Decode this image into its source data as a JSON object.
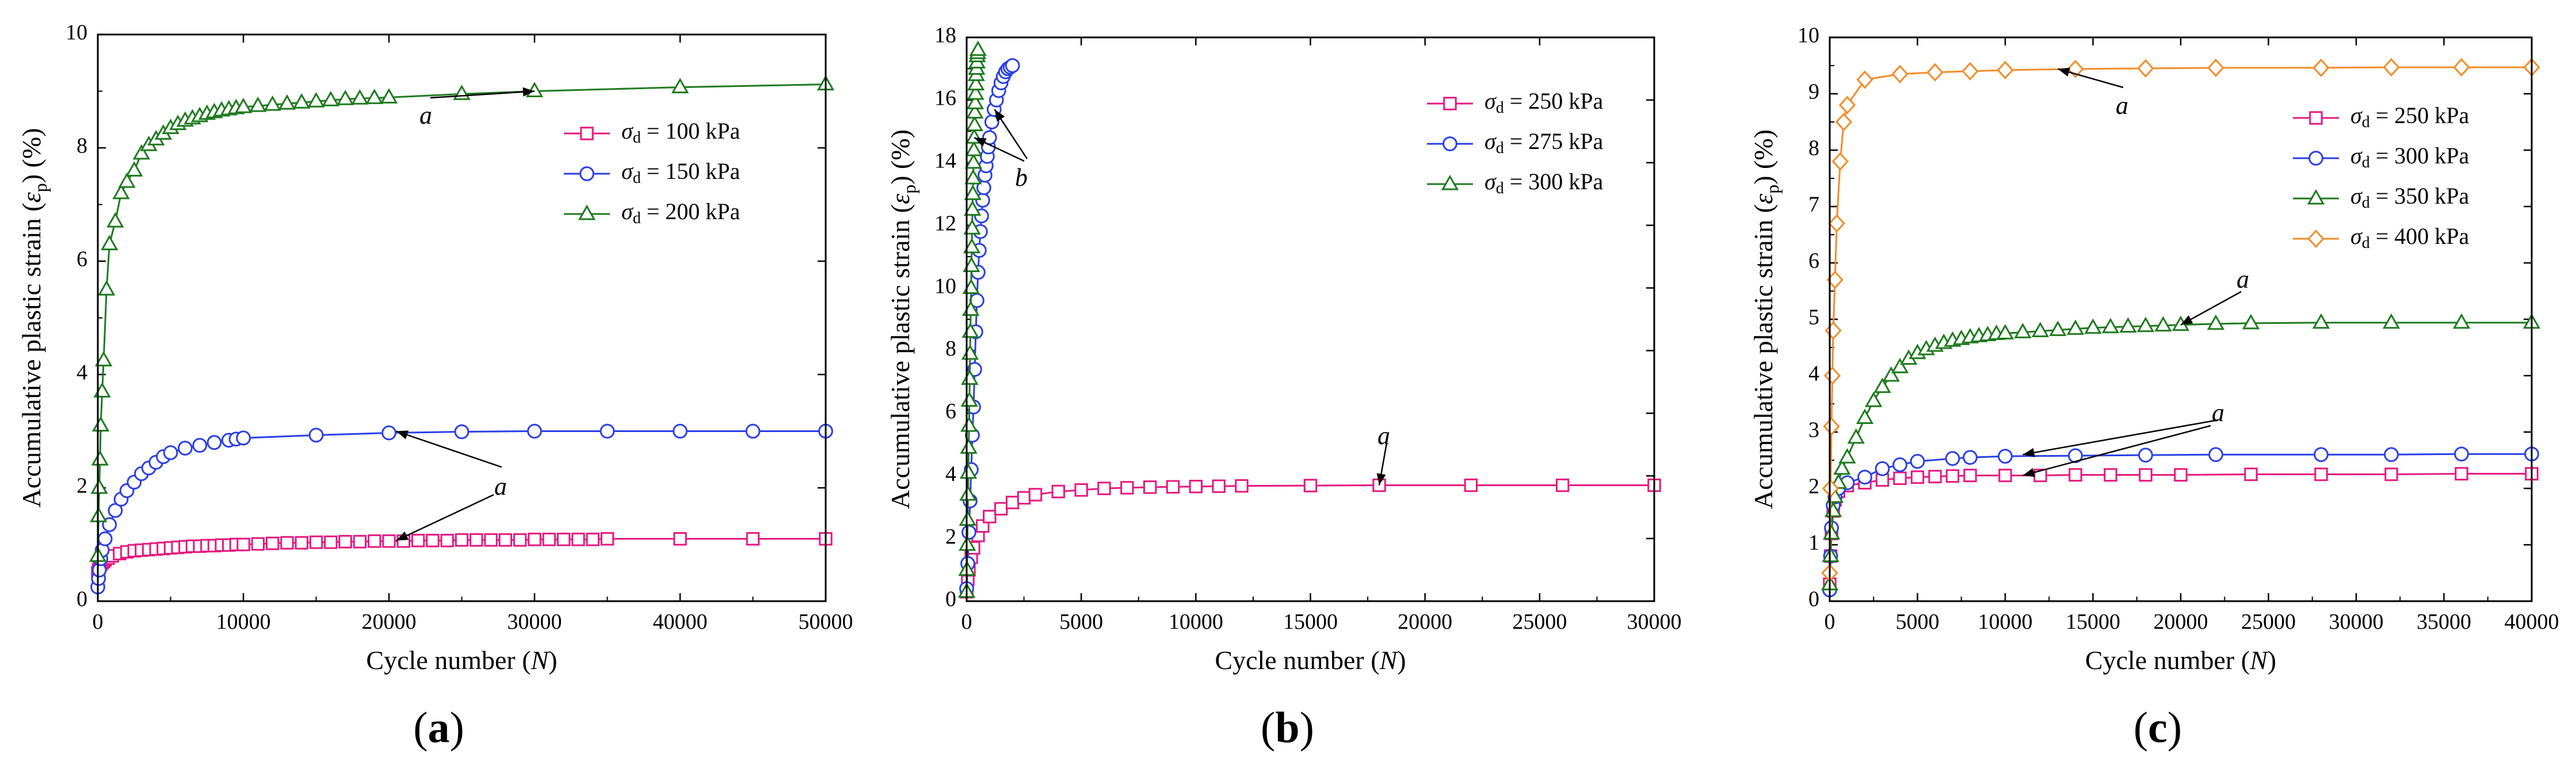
{
  "chart_data": [
    {
      "type": "line",
      "panel_label": "a",
      "xlabel": "Cycle number (N)",
      "ylabel": "Accumulative plastic strain (εp) (%)",
      "xlim": [
        0,
        50000
      ],
      "ylim": [
        0,
        10
      ],
      "xticks": [
        0,
        10000,
        20000,
        30000,
        40000,
        50000
      ],
      "yticks": [
        0,
        2,
        4,
        6,
        8,
        10
      ],
      "legend_position": "right",
      "series": [
        {
          "name": "σd = 100 kPa",
          "color": "#e6197f",
          "marker": "square",
          "x": [
            0,
            50,
            100,
            200,
            300,
            400,
            500,
            700,
            1000,
            1500,
            2000,
            2500,
            3000,
            3500,
            4000,
            4500,
            5000,
            5500,
            6000,
            6500,
            7000,
            7500,
            8000,
            8500,
            9000,
            9500,
            10000,
            11000,
            12000,
            13000,
            14000,
            15000,
            16000,
            17000,
            18000,
            19000,
            20000,
            21000,
            22000,
            23000,
            24000,
            25000,
            26000,
            27000,
            28000,
            29000,
            30000,
            31000,
            32000,
            33000,
            34000,
            35000,
            40000,
            45000,
            50000
          ],
          "y": [
            0.5,
            0.55,
            0.6,
            0.65,
            0.68,
            0.7,
            0.73,
            0.76,
            0.8,
            0.84,
            0.87,
            0.89,
            0.9,
            0.91,
            0.92,
            0.93,
            0.94,
            0.95,
            0.96,
            0.97,
            0.97,
            0.98,
            0.98,
            0.99,
            0.99,
            1.0,
            1.0,
            1.01,
            1.02,
            1.03,
            1.03,
            1.04,
            1.04,
            1.05,
            1.05,
            1.06,
            1.06,
            1.06,
            1.07,
            1.07,
            1.07,
            1.08,
            1.08,
            1.08,
            1.08,
            1.08,
            1.09,
            1.09,
            1.09,
            1.09,
            1.09,
            1.1,
            1.1,
            1.1,
            1.1
          ]
        },
        {
          "name": "σd = 150 kPa",
          "color": "#2a3fe6",
          "marker": "circle",
          "x": [
            0,
            50,
            100,
            200,
            300,
            500,
            800,
            1200,
            1600,
            2000,
            2500,
            3000,
            3500,
            4000,
            4500,
            5000,
            6000,
            7000,
            8000,
            9000,
            9500,
            10000,
            15000,
            20000,
            25000,
            30000,
            35000,
            40000,
            45000,
            50000
          ],
          "y": [
            0.25,
            0.4,
            0.55,
            0.75,
            0.9,
            1.1,
            1.35,
            1.6,
            1.8,
            1.95,
            2.1,
            2.25,
            2.35,
            2.45,
            2.55,
            2.62,
            2.7,
            2.75,
            2.8,
            2.84,
            2.86,
            2.88,
            2.93,
            2.97,
            2.99,
            3.0,
            3.0,
            3.0,
            3.0,
            3.0
          ]
        },
        {
          "name": "σd = 200 kPa",
          "color": "#1f7a1f",
          "marker": "triangle",
          "x": [
            0,
            50,
            100,
            150,
            200,
            300,
            400,
            600,
            800,
            1200,
            1600,
            2000,
            2500,
            3000,
            3500,
            4000,
            4500,
            5000,
            5500,
            6000,
            6500,
            7000,
            7500,
            8000,
            8500,
            9000,
            9500,
            10000,
            11000,
            12000,
            13000,
            14000,
            15000,
            16000,
            17000,
            18000,
            19000,
            20000,
            25000,
            30000,
            40000,
            50000
          ],
          "y": [
            0.8,
            1.5,
            2.0,
            2.5,
            3.1,
            3.7,
            4.25,
            5.5,
            6.3,
            6.7,
            7.2,
            7.4,
            7.6,
            7.9,
            8.05,
            8.15,
            8.25,
            8.35,
            8.42,
            8.48,
            8.52,
            8.56,
            8.6,
            8.63,
            8.66,
            8.68,
            8.7,
            8.72,
            8.74,
            8.76,
            8.78,
            8.8,
            8.82,
            8.84,
            8.86,
            8.87,
            8.88,
            8.89,
            8.95,
            9.0,
            9.07,
            9.12
          ]
        }
      ],
      "annotations": [
        {
          "text": "a",
          "target_series": 2
        },
        {
          "text": "a",
          "target_series": [
            0,
            1
          ]
        }
      ]
    },
    {
      "type": "line",
      "panel_label": "b",
      "xlabel": "Cycle number (N)",
      "ylabel": "Accumulative plastic strain (εp) (%)",
      "xlim": [
        0,
        30000
      ],
      "ylim": [
        0,
        18
      ],
      "xticks": [
        0,
        5000,
        10000,
        15000,
        20000,
        25000,
        30000
      ],
      "yticks": [
        0,
        2,
        4,
        6,
        8,
        10,
        12,
        14,
        16,
        18
      ],
      "legend_position": "top-right",
      "series": [
        {
          "name": "σd = 250 kPa",
          "color": "#e6197f",
          "marker": "square",
          "x": [
            0,
            50,
            100,
            200,
            300,
            500,
            700,
            1000,
            1500,
            2000,
            2500,
            3000,
            4000,
            5000,
            6000,
            7000,
            8000,
            9000,
            10000,
            11000,
            12000,
            15000,
            18000,
            22000,
            26000,
            30000
          ],
          "y": [
            0.3,
            0.7,
            1.0,
            1.4,
            1.7,
            2.1,
            2.4,
            2.7,
            2.95,
            3.15,
            3.3,
            3.4,
            3.5,
            3.55,
            3.6,
            3.62,
            3.64,
            3.65,
            3.66,
            3.67,
            3.68,
            3.69,
            3.7,
            3.7,
            3.7,
            3.7
          ]
        },
        {
          "name": "σd = 275 kPa",
          "color": "#2a3fe6",
          "marker": "circle",
          "x": [
            0,
            50,
            100,
            150,
            200,
            250,
            300,
            350,
            400,
            450,
            500,
            550,
            600,
            650,
            700,
            750,
            800,
            850,
            900,
            950,
            1000,
            1100,
            1200,
            1300,
            1400,
            1500,
            1600,
            1700,
            1800,
            1900,
            2000
          ],
          "y": [
            0.4,
            1.2,
            2.2,
            3.2,
            4.2,
            5.3,
            6.2,
            7.4,
            8.6,
            9.6,
            10.5,
            11.2,
            11.8,
            12.3,
            12.8,
            13.2,
            13.6,
            13.9,
            14.2,
            14.5,
            14.8,
            15.3,
            15.7,
            16.0,
            16.3,
            16.55,
            16.75,
            16.9,
            17.0,
            17.05,
            17.1
          ]
        },
        {
          "name": "σd = 300 kPa",
          "color": "#1f7a1f",
          "marker": "triangle",
          "x": [
            0,
            15,
            30,
            45,
            60,
            75,
            90,
            105,
            120,
            135,
            150,
            165,
            180,
            195,
            210,
            225,
            240,
            255,
            270,
            285,
            300,
            315,
            330,
            345,
            360,
            375,
            390,
            405,
            420,
            435,
            450,
            465,
            480,
            495
          ],
          "y": [
            0.3,
            1.0,
            1.8,
            2.6,
            3.4,
            4.1,
            4.9,
            5.6,
            6.4,
            7.1,
            7.9,
            8.6,
            9.3,
            10.0,
            10.7,
            11.3,
            11.9,
            12.5,
            13.0,
            13.5,
            14.0,
            14.4,
            14.8,
            15.2,
            15.6,
            15.9,
            16.2,
            16.5,
            16.8,
            17.0,
            17.2,
            17.4,
            17.5,
            17.6
          ]
        }
      ],
      "annotations": [
        {
          "text": "a",
          "target_series": 0
        },
        {
          "text": "b",
          "target_series": [
            1,
            2
          ]
        }
      ]
    },
    {
      "type": "line",
      "panel_label": "c",
      "xlabel": "Cycle number (N)",
      "ylabel": "Accumulative plastic strain (εp) (%)",
      "xlim": [
        0,
        40000
      ],
      "ylim": [
        0,
        10
      ],
      "xticks": [
        0,
        5000,
        10000,
        15000,
        20000,
        25000,
        30000,
        35000,
        40000
      ],
      "yticks": [
        0,
        1,
        2,
        3,
        4,
        5,
        6,
        7,
        8,
        9,
        10
      ],
      "legend_position": "top-right",
      "series": [
        {
          "name": "σd = 250 kPa",
          "color": "#e6197f",
          "marker": "square",
          "x": [
            0,
            50,
            100,
            200,
            300,
            500,
            1000,
            2000,
            3000,
            4000,
            5000,
            6000,
            7000,
            8000,
            10000,
            12000,
            14000,
            16000,
            18000,
            20000,
            24000,
            28000,
            32000,
            36000,
            40000
          ],
          "y": [
            0.3,
            0.8,
            1.2,
            1.6,
            1.8,
            1.95,
            2.05,
            2.1,
            2.15,
            2.18,
            2.2,
            2.21,
            2.22,
            2.23,
            2.23,
            2.23,
            2.24,
            2.24,
            2.24,
            2.24,
            2.25,
            2.25,
            2.25,
            2.26,
            2.26
          ]
        },
        {
          "name": "σd = 300 kPa",
          "color": "#2a3fe6",
          "marker": "circle",
          "x": [
            0,
            50,
            100,
            200,
            300,
            500,
            1000,
            2000,
            3000,
            4000,
            5000,
            7000,
            8000,
            10000,
            14000,
            18000,
            22000,
            28000,
            32000,
            36000,
            40000
          ],
          "y": [
            0.2,
            0.8,
            1.3,
            1.7,
            1.85,
            2.0,
            2.1,
            2.2,
            2.35,
            2.42,
            2.48,
            2.53,
            2.55,
            2.57,
            2.58,
            2.59,
            2.6,
            2.6,
            2.6,
            2.61,
            2.61
          ]
        },
        {
          "name": "σd = 350 kPa",
          "color": "#1f7a1f",
          "marker": "triangle",
          "x": [
            0,
            50,
            100,
            200,
            300,
            500,
            700,
            1000,
            1500,
            2000,
            2500,
            3000,
            3500,
            4000,
            4500,
            5000,
            5500,
            6000,
            6500,
            7000,
            7500,
            8000,
            8500,
            9000,
            9500,
            10000,
            11000,
            12000,
            13000,
            14000,
            15000,
            16000,
            17000,
            18000,
            19000,
            20000,
            22000,
            24000,
            28000,
            32000,
            36000,
            40000
          ],
          "y": [
            0.3,
            0.8,
            1.2,
            1.6,
            1.85,
            2.1,
            2.35,
            2.55,
            2.9,
            3.25,
            3.55,
            3.8,
            4.0,
            4.15,
            4.3,
            4.4,
            4.47,
            4.53,
            4.58,
            4.62,
            4.65,
            4.68,
            4.7,
            4.72,
            4.74,
            4.75,
            4.77,
            4.79,
            4.81,
            4.83,
            4.85,
            4.86,
            4.87,
            4.88,
            4.89,
            4.9,
            4.92,
            4.93,
            4.94,
            4.94,
            4.94,
            4.94
          ]
        },
        {
          "name": "σd = 400 kPa",
          "color": "#f28c28",
          "marker": "diamond",
          "x": [
            0,
            50,
            100,
            150,
            200,
            300,
            400,
            600,
            800,
            1000,
            2000,
            4000,
            6000,
            8000,
            10000,
            14000,
            18000,
            22000,
            28000,
            32000,
            36000,
            40000
          ],
          "y": [
            0.5,
            2.0,
            3.1,
            4.0,
            4.8,
            5.7,
            6.7,
            7.8,
            8.5,
            8.8,
            9.25,
            9.35,
            9.38,
            9.4,
            9.42,
            9.44,
            9.45,
            9.46,
            9.46,
            9.47,
            9.47,
            9.47
          ]
        }
      ],
      "annotations": [
        {
          "text": "a",
          "target_series": 3
        },
        {
          "text": "a",
          "target_series": 2
        },
        {
          "text": "a",
          "target_series": [
            0,
            1
          ]
        }
      ]
    }
  ]
}
